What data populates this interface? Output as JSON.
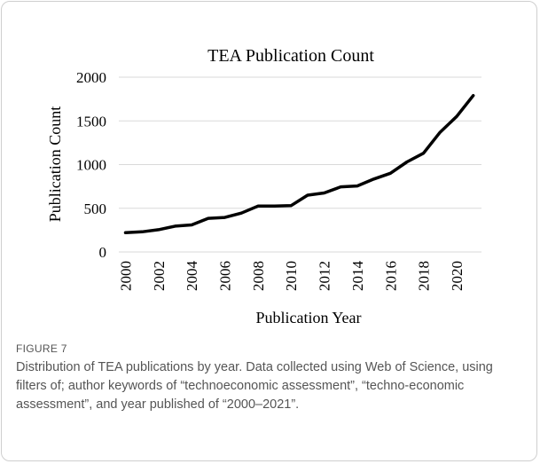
{
  "figure": {
    "label": "FIGURE 7",
    "caption": "Distribution of TEA publications by year. Data collected using Web of Science, using filters of; author keywords of “technoeconomic assessment”, “techno-economic assessment”, and year published of “2000–2021”."
  },
  "chart_data": {
    "type": "line",
    "title": "TEA Publication Count",
    "xlabel": "Publication Year",
    "ylabel": "Publication Count",
    "x": [
      2000,
      2001,
      2002,
      2003,
      2004,
      2005,
      2006,
      2007,
      2008,
      2009,
      2010,
      2011,
      2012,
      2013,
      2014,
      2015,
      2016,
      2017,
      2018,
      2019,
      2020,
      2021
    ],
    "series": [
      {
        "values": [
          220,
          230,
          255,
          295,
          310,
          385,
          395,
          445,
          525,
          525,
          530,
          650,
          675,
          745,
          755,
          835,
          900,
          1030,
          1130,
          1370,
          1550,
          1790
        ],
        "color": "#000000"
      }
    ],
    "ylim": [
      0,
      2000
    ],
    "yticks": [
      0,
      500,
      1000,
      1500,
      2000
    ],
    "xticks": [
      2000,
      2002,
      2004,
      2006,
      2008,
      2010,
      2012,
      2014,
      2016,
      2018,
      2020
    ],
    "grid": "horizontal",
    "legend": "none"
  }
}
